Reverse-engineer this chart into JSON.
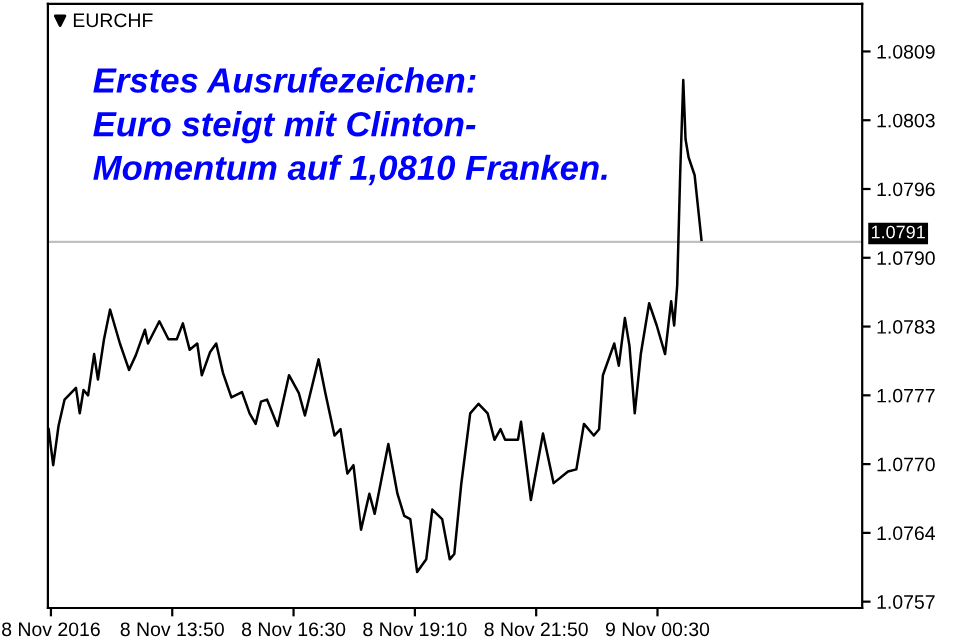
{
  "chart_data": {
    "type": "line",
    "title": "Erstes Ausrufezeichen:\nEuro steigt mit Clinton-\nMomentum auf 1,0810 Franken.",
    "annotations": [
      "EURCHF"
    ],
    "x": [
      "2016-11-08T11:07",
      "2016-11-08T11:13",
      "2016-11-08T11:20",
      "2016-11-08T11:28",
      "2016-11-08T11:43",
      "2016-11-08T11:48",
      "2016-11-08T11:53",
      "2016-11-08T11:59",
      "2016-11-08T12:07",
      "2016-11-08T12:12",
      "2016-11-08T12:20",
      "2016-11-08T12:28",
      "2016-11-08T12:41",
      "2016-11-08T12:53",
      "2016-11-08T13:02",
      "2016-11-08T13:14",
      "2016-11-08T13:18",
      "2016-11-08T13:33",
      "2016-11-08T13:45",
      "2016-11-08T13:56",
      "2016-11-08T14:04",
      "2016-11-08T14:13",
      "2016-11-08T14:23",
      "2016-11-08T14:29",
      "2016-11-08T14:40",
      "2016-11-08T14:48",
      "2016-11-08T14:57",
      "2016-11-08T15:08",
      "2016-11-08T15:22",
      "2016-11-08T15:32",
      "2016-11-08T15:40",
      "2016-11-08T15:47",
      "2016-11-08T15:55",
      "2016-11-08T16:09",
      "2016-11-08T16:24",
      "2016-11-08T16:37",
      "2016-11-08T16:45",
      "2016-11-08T17:03",
      "2016-11-08T17:12",
      "2016-11-08T17:24",
      "2016-11-08T17:32",
      "2016-11-08T17:41",
      "2016-11-08T17:49",
      "2016-11-08T17:59",
      "2016-11-08T18:10",
      "2016-11-08T18:17",
      "2016-11-08T18:35",
      "2016-11-08T18:47",
      "2016-11-08T18:56",
      "2016-11-08T19:04",
      "2016-11-08T19:13",
      "2016-11-08T19:25",
      "2016-11-08T19:33",
      "2016-11-08T19:46",
      "2016-11-08T19:56",
      "2016-11-08T20:02",
      "2016-11-08T20:11",
      "2016-11-08T20:23",
      "2016-11-08T20:34",
      "2016-11-08T20:46",
      "2016-11-08T20:55",
      "2016-11-08T21:03",
      "2016-11-08T21:09",
      "2016-11-08T21:26",
      "2016-11-08T21:30",
      "2016-11-08T21:43",
      "2016-11-08T21:59",
      "2016-11-08T22:13",
      "2016-11-08T22:32",
      "2016-11-08T22:43",
      "2016-11-08T22:53",
      "2016-11-08T23:06",
      "2016-11-08T23:13",
      "2016-11-08T23:18",
      "2016-11-08T23:33",
      "2016-11-08T23:39",
      "2016-11-08T23:47",
      "2016-11-08T23:53",
      "2016-11-09T00:00",
      "2016-11-09T00:08",
      "2016-11-09T00:19",
      "2016-11-09T00:29",
      "2016-11-09T00:40",
      "2016-11-09T00:48",
      "2016-11-09T00:52",
      "2016-11-09T00:56",
      "2016-11-09T01:00",
      "2016-11-09T01:04",
      "2016-11-09T01:07",
      "2016-11-09T01:11",
      "2016-11-09T01:19",
      "2016-11-09T01:28"
    ],
    "series": [
      {
        "color": "#000000",
        "values": [
          1.07733,
          1.07699,
          1.07736,
          1.07761,
          1.07772,
          1.07748,
          1.0777,
          1.07765,
          1.07804,
          1.0778,
          1.07818,
          1.07846,
          1.07814,
          1.07789,
          1.07803,
          1.07827,
          1.07814,
          1.07835,
          1.07818,
          1.07818,
          1.07833,
          1.07808,
          1.07814,
          1.07784,
          1.07806,
          1.07814,
          1.07786,
          1.07763,
          1.07768,
          1.07748,
          1.07738,
          1.07759,
          1.07761,
          1.07736,
          1.07784,
          1.07767,
          1.07746,
          1.07799,
          1.07767,
          1.07727,
          1.07733,
          1.07691,
          1.07699,
          1.07638,
          1.07672,
          1.07653,
          1.07719,
          1.07672,
          1.07651,
          1.07648,
          1.07598,
          1.0761,
          1.07657,
          1.07648,
          1.0761,
          1.07615,
          1.0768,
          1.07748,
          1.07757,
          1.07748,
          1.07723,
          1.07733,
          1.07723,
          1.07723,
          1.0774,
          1.07666,
          1.07729,
          1.07682,
          1.07693,
          1.07695,
          1.07738,
          1.07727,
          1.07733,
          1.07784,
          1.07814,
          1.07793,
          1.07838,
          1.07812,
          1.07748,
          1.07804,
          1.07852,
          1.07831,
          1.07804,
          1.07854,
          1.07831,
          1.07869,
          1.07976,
          1.08063,
          1.08007,
          1.0799,
          1.07973,
          1.07912
        ]
      }
    ],
    "xlim": [
      "2016-11-08T11:06",
      "2016-11-09T05:00"
    ],
    "xticks": [
      {
        "value": "2016-11-08T11:10",
        "label": "8 Nov 2016"
      },
      {
        "value": "2016-11-08T13:50",
        "label": "8 Nov 13:50"
      },
      {
        "value": "2016-11-08T16:30",
        "label": "8 Nov 16:30"
      },
      {
        "value": "2016-11-08T19:10",
        "label": "8 Nov 19:10"
      },
      {
        "value": "2016-11-08T21:50",
        "label": "8 Nov 21:50"
      },
      {
        "value": "2016-11-09T00:30",
        "label": "9 Nov 00:30"
      }
    ],
    "ylim": [
      1.07564,
      1.08135
    ],
    "yticks": [
      {
        "value": 1.0757,
        "label": "1.0757"
      },
      {
        "value": 1.07635,
        "label": "1.0764"
      },
      {
        "value": 1.077,
        "label": "1.0770"
      },
      {
        "value": 1.07765,
        "label": "1.0777"
      },
      {
        "value": 1.0783,
        "label": "1.0783"
      },
      {
        "value": 1.07895,
        "label": "1.0790"
      },
      {
        "value": 1.0796,
        "label": "1.0796"
      },
      {
        "value": 1.08025,
        "label": "1.0803"
      },
      {
        "value": 1.0809,
        "label": "1.0809"
      }
    ],
    "ref_lines": [
      {
        "axis": "y",
        "value": 1.0791,
        "label": "1.0791",
        "color": "#c0c0c0"
      }
    ],
    "grid": false,
    "marker": "none",
    "line_style": "solid"
  }
}
